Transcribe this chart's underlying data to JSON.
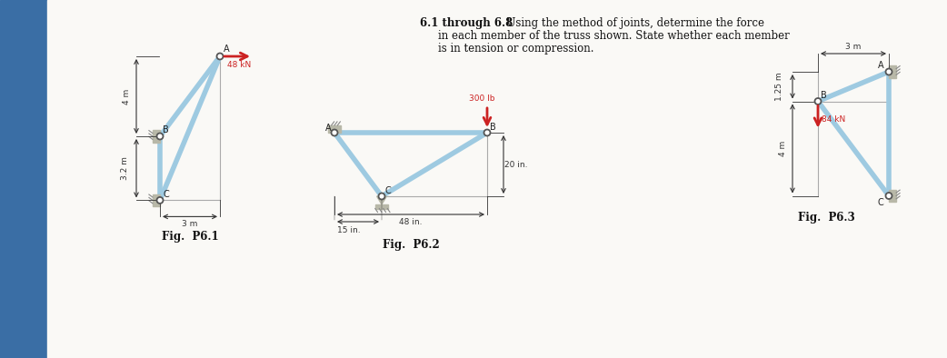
{
  "bg_color": "#f0ede8",
  "panel_color": "#faf9f6",
  "member_color": "#9ecae1",
  "member_lw": 4.0,
  "joint_color": "white",
  "joint_ec": "#555555",
  "force_color": "#cc2222",
  "dim_color": "#333333",
  "support_color": "#b8b8a8",
  "fig1_label": "Fig.  P6.1",
  "fig2_label": "Fig.  P6.2",
  "fig3_label": "Fig.  P6.3",
  "left_bar_color": "#3a6ea5",
  "title_bold": "6.1 through 6.8",
  "title_rest_1": "  Using the method of joints, determine the force",
  "title_rest_2": "in each member of the truss shown. State whether each member",
  "title_rest_3": "is in tension or compression."
}
